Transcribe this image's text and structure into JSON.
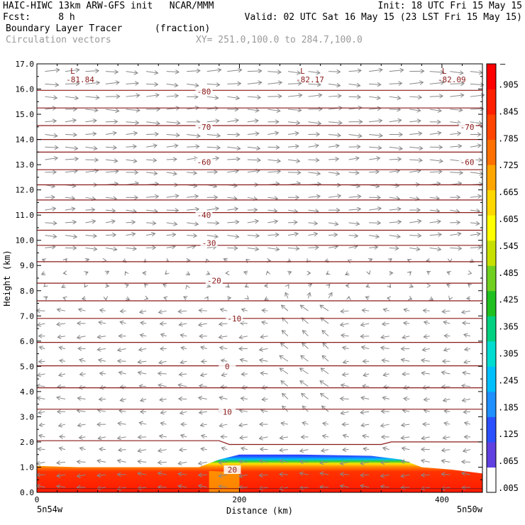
{
  "header": {
    "line1_left": "HAIC-HIWC 13km ARW-GFS init   NCAR/MMM",
    "line1_right": "Init: 18 UTC Fri 15 May 15",
    "fcst_label": "Fcst:     8 h",
    "valid": "Valid: 02 UTC Sat 16 May 15 (23 LST Fri 15 May 15)",
    "field_name": "Boundary Layer Tracer",
    "field_units": "(fraction)",
    "vector_name": "Circulation vectors",
    "xy_range": "XY= 251.0,100.0 to 284.7,100.0"
  },
  "chart_data": {
    "type": "heatmap",
    "title": "Boundary Layer Tracer (fraction)",
    "xlabel": "Distance (km)",
    "ylabel": "Height (km)",
    "xlim": [
      0,
      440
    ],
    "ylim": [
      0,
      17
    ],
    "x_ticks": [
      "0",
      "200",
      "400"
    ],
    "x_tick_values": [
      0,
      200,
      400
    ],
    "x_end_labels": [
      "5n54w",
      "5n50w"
    ],
    "y_ticks": [
      "0.0",
      "1.0",
      "2.0",
      "3.0",
      "4.0",
      "5.0",
      "6.0",
      "7.0",
      "8.0",
      "9.0",
      "10.0",
      "11.0",
      "12.0",
      "13.0",
      "14.0",
      "15.0",
      "16.0",
      "17.0"
    ],
    "colorbar_labels": [
      ".005",
      ".065",
      ".125",
      ".185",
      ".245",
      ".305",
      ".365",
      ".425",
      ".485",
      ".545",
      ".605",
      ".665",
      ".725",
      ".785",
      ".845",
      ".905"
    ],
    "colorbar_top_label": "–",
    "contour_labels": [
      {
        "text": "-80",
        "x": 165,
        "y": 15.9
      },
      {
        "text": "-70",
        "x": 165,
        "y": 14.5
      },
      {
        "text": "-70",
        "x": 425,
        "y": 14.5
      },
      {
        "text": "-60",
        "x": 165,
        "y": 13.1
      },
      {
        "text": "-60",
        "x": 425,
        "y": 13.1
      },
      {
        "text": "-40",
        "x": 165,
        "y": 11.0
      },
      {
        "text": "-30",
        "x": 170,
        "y": 9.9
      },
      {
        "text": "-20",
        "x": 175,
        "y": 8.4
      },
      {
        "text": "-10",
        "x": 195,
        "y": 6.9
      },
      {
        "text": "0",
        "x": 188,
        "y": 5.0
      },
      {
        "text": "10",
        "x": 188,
        "y": 3.2
      },
      {
        "text": "20",
        "x": 193,
        "y": 0.9
      }
    ],
    "low_labels": [
      {
        "mark": "L",
        "value": "-81.84",
        "x": 33,
        "y": 16.6
      },
      {
        "mark": "L",
        "value": "-82.17",
        "x": 260,
        "y": 16.6
      },
      {
        "mark": "L",
        "value": "-82.09",
        "x": 400,
        "y": 16.6
      }
    ],
    "isotherm_heights": [
      0.15,
      2.05,
      3.3,
      4.15,
      5.02,
      5.95,
      6.9,
      7.6,
      8.3,
      9.15,
      9.8,
      10.4,
      11.1,
      11.6,
      12.2,
      12.8,
      13.5,
      14.0,
      14.55,
      15.25,
      15.95
    ],
    "boundary_layer_top_km": [
      [
        0,
        1.05
      ],
      [
        40,
        1.0
      ],
      [
        140,
        1.0
      ],
      [
        160,
        1.0
      ],
      [
        180,
        1.3
      ],
      [
        200,
        1.5
      ],
      [
        260,
        1.5
      ],
      [
        330,
        1.45
      ],
      [
        360,
        1.3
      ],
      [
        380,
        1.0
      ],
      [
        410,
        0.9
      ],
      [
        440,
        0.75
      ]
    ]
  }
}
